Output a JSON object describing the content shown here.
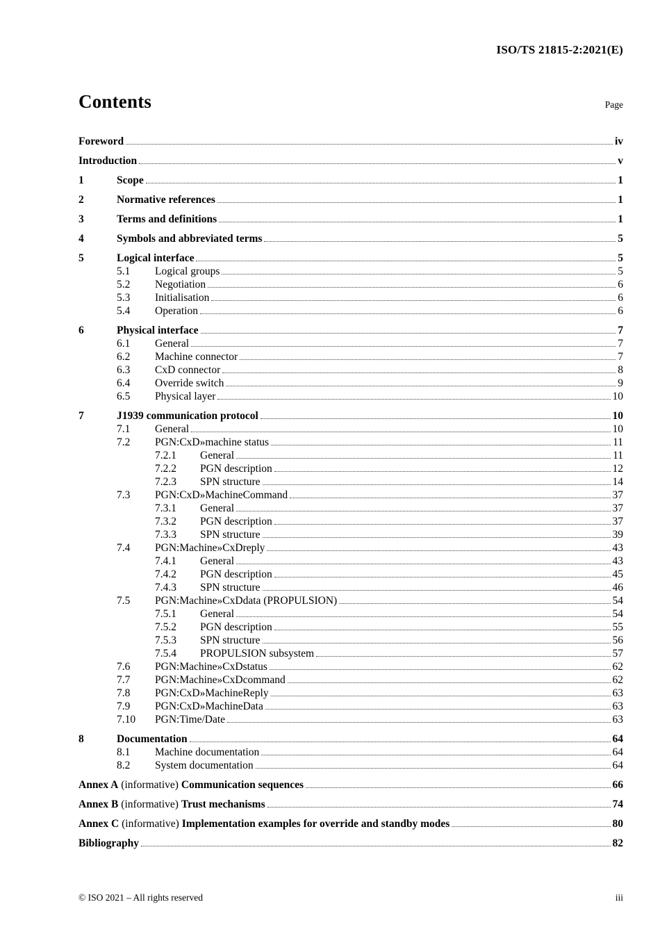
{
  "doc_header": "ISO/TS 21815-2:2021(E)",
  "title": "Contents",
  "page_label": "Page",
  "footer": {
    "copyright": "© ISO 2021 – All rights reserved",
    "page_number": "iii"
  },
  "toc": {
    "entries": [
      {
        "level": 0,
        "label": "Foreword",
        "page": "iv"
      },
      {
        "level": 0,
        "label": "Introduction",
        "page": "v"
      },
      {
        "level": 1,
        "num": "1",
        "label": "Scope",
        "page": "1"
      },
      {
        "level": 1,
        "num": "2",
        "label": "Normative references",
        "page": "1"
      },
      {
        "level": 1,
        "num": "3",
        "label": "Terms and definitions",
        "page": "1"
      },
      {
        "level": 1,
        "num": "4",
        "label": "Symbols and abbreviated terms",
        "page": "5"
      },
      {
        "level": 1,
        "num": "5",
        "label": "Logical interface",
        "page": "5"
      },
      {
        "level": 2,
        "num": "5.1",
        "label": "Logical groups",
        "page": "5"
      },
      {
        "level": 2,
        "num": "5.2",
        "label": "Negotiation",
        "page": "6"
      },
      {
        "level": 2,
        "num": "5.3",
        "label": "Initialisation",
        "page": "6"
      },
      {
        "level": 2,
        "num": "5.4",
        "label": "Operation",
        "page": "6"
      },
      {
        "level": 1,
        "num": "6",
        "label": "Physical interface",
        "page": "7"
      },
      {
        "level": 2,
        "num": "6.1",
        "label": "General",
        "page": "7"
      },
      {
        "level": 2,
        "num": "6.2",
        "label": "Machine connector",
        "page": "7"
      },
      {
        "level": 2,
        "num": "6.3",
        "label": "CxD connector",
        "page": "8"
      },
      {
        "level": 2,
        "num": "6.4",
        "label": "Override switch",
        "page": "9"
      },
      {
        "level": 2,
        "num": "6.5",
        "label": "Physical layer",
        "page": "10"
      },
      {
        "level": 1,
        "num": "7",
        "label": "J1939 communication protocol",
        "page": "10"
      },
      {
        "level": 2,
        "num": "7.1",
        "label": "General",
        "page": "10"
      },
      {
        "level": 2,
        "num": "7.2",
        "label": "PGN:CxD»machine status",
        "page": "11"
      },
      {
        "level": 3,
        "num": "7.2.1",
        "label": "General",
        "page": "11"
      },
      {
        "level": 3,
        "num": "7.2.2",
        "label": "PGN description",
        "page": "12"
      },
      {
        "level": 3,
        "num": "7.2.3",
        "label": "SPN structure",
        "page": "14"
      },
      {
        "level": 2,
        "num": "7.3",
        "label": "PGN:CxD»MachineCommand",
        "page": "37"
      },
      {
        "level": 3,
        "num": "7.3.1",
        "label": "General",
        "page": "37"
      },
      {
        "level": 3,
        "num": "7.3.2",
        "label": "PGN description",
        "page": "37"
      },
      {
        "level": 3,
        "num": "7.3.3",
        "label": "SPN structure",
        "page": "39"
      },
      {
        "level": 2,
        "num": "7.4",
        "label": "PGN:Machine»CxDreply",
        "page": "43"
      },
      {
        "level": 3,
        "num": "7.4.1",
        "label": "General",
        "page": "43"
      },
      {
        "level": 3,
        "num": "7.4.2",
        "label": "PGN description",
        "page": "45"
      },
      {
        "level": 3,
        "num": "7.4.3",
        "label": "SPN structure",
        "page": "46"
      },
      {
        "level": 2,
        "num": "7.5",
        "label": "PGN:Machine»CxDdata (PROPULSION)",
        "page": "54"
      },
      {
        "level": 3,
        "num": "7.5.1",
        "label": "General",
        "page": "54"
      },
      {
        "level": 3,
        "num": "7.5.2",
        "label": "PGN description",
        "page": "55"
      },
      {
        "level": 3,
        "num": "7.5.3",
        "label": "SPN structure",
        "page": "56"
      },
      {
        "level": 3,
        "num": "7.5.4",
        "label": "PROPULSION subsystem",
        "page": "57"
      },
      {
        "level": 2,
        "num": "7.6",
        "label": "PGN:Machine»CxDstatus",
        "page": "62"
      },
      {
        "level": 2,
        "num": "7.7",
        "label": "PGN:Machine»CxDcommand",
        "page": "62"
      },
      {
        "level": 2,
        "num": "7.8",
        "label": "PGN:CxD»MachineReply",
        "page": "63"
      },
      {
        "level": 2,
        "num": "7.9",
        "label": "PGN:CxD»MachineData",
        "page": "63"
      },
      {
        "level": 2,
        "num": "7.10",
        "label": "PGN:Time/Date",
        "page": "63"
      },
      {
        "level": 1,
        "num": "8",
        "label": "Documentation",
        "page": "64"
      },
      {
        "level": 2,
        "num": "8.1",
        "label": "Machine documentation",
        "page": "64"
      },
      {
        "level": 2,
        "num": "8.2",
        "label": "System documentation",
        "page": "64"
      },
      {
        "level": 0,
        "label": "Annex A",
        "note": "(informative)",
        "title2": "Communication sequences",
        "page": "66"
      },
      {
        "level": 0,
        "label": "Annex B",
        "note": "(informative)",
        "title2": "Trust mechanisms",
        "page": "74"
      },
      {
        "level": 0,
        "label": "Annex C",
        "note": "(informative)",
        "title2": "Implementation examples for override and standby modes",
        "page": "80"
      },
      {
        "level": 0,
        "label": "Bibliography",
        "page": "82"
      }
    ]
  }
}
